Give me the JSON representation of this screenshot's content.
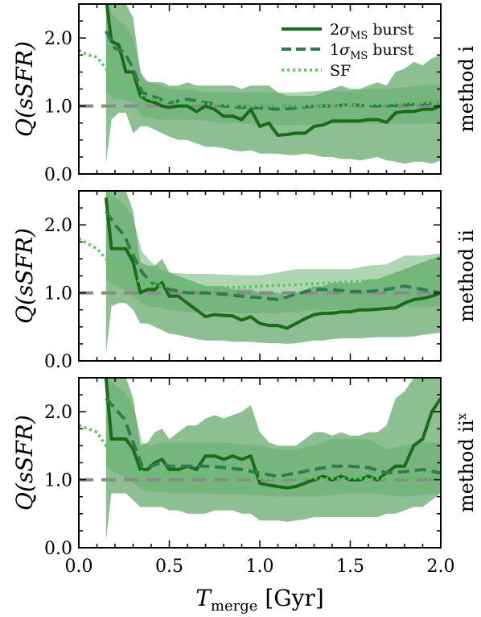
{
  "chart_data": [
    {
      "type": "line",
      "panel_label": "method i",
      "ylabel": "Q(sSFR)",
      "xlim": [
        0.0,
        2.0
      ],
      "ylim": [
        0.0,
        2.5
      ],
      "xticks": [
        "0.0",
        "0.5",
        "1.0",
        "1.5",
        "2.0"
      ],
      "yticks": [
        "0.0",
        "1.0",
        "2.0"
      ],
      "reference_line": 1.0,
      "legend": [
        "2σMS burst",
        "1σMS burst",
        "SF"
      ],
      "series": [
        {
          "name": "2σMS burst",
          "color": "#1a6b1a",
          "style": "solid",
          "x": [
            0.15,
            0.18,
            0.22,
            0.26,
            0.3,
            0.34,
            0.38,
            0.42,
            0.46,
            0.5,
            0.55,
            0.6,
            0.65,
            0.7,
            0.75,
            0.8,
            0.85,
            0.9,
            0.95,
            1.0,
            1.05,
            1.1,
            1.15,
            1.2,
            1.25,
            1.3,
            1.35,
            1.4,
            1.45,
            1.5,
            1.55,
            1.6,
            1.65,
            1.7,
            1.75,
            1.8,
            1.85,
            1.9,
            1.95,
            2.0
          ],
          "y": [
            2.6,
            1.95,
            1.9,
            1.5,
            1.5,
            1.15,
            1.08,
            1.05,
            1.0,
            0.98,
            1.0,
            1.0,
            0.92,
            1.0,
            0.95,
            0.85,
            0.85,
            0.8,
            0.95,
            0.7,
            0.75,
            0.57,
            0.58,
            0.6,
            0.6,
            0.7,
            0.72,
            0.78,
            0.78,
            0.78,
            0.78,
            0.8,
            0.8,
            0.76,
            0.9,
            0.92,
            0.92,
            0.95,
            0.95,
            1.0
          ],
          "lower": [
            0.15,
            0.8,
            0.9,
            0.9,
            0.6,
            0.7,
            0.7,
            0.65,
            0.6,
            0.55,
            0.5,
            0.5,
            0.45,
            0.4,
            0.4,
            0.38,
            0.35,
            0.33,
            0.35,
            0.3,
            0.3,
            0.3,
            0.28,
            0.28,
            0.3,
            0.28,
            0.25,
            0.25,
            0.22,
            0.22,
            0.2,
            0.22,
            0.25,
            0.2,
            0.18,
            0.15,
            0.18,
            0.18,
            0.15,
            0.2
          ],
          "upper": [
            2.6,
            2.6,
            2.6,
            2.5,
            2.3,
            1.5,
            1.35,
            1.35,
            1.35,
            1.3,
            1.3,
            1.35,
            1.3,
            1.3,
            1.3,
            1.3,
            1.3,
            1.25,
            1.3,
            1.3,
            1.3,
            1.2,
            1.15,
            1.15,
            1.15,
            1.15,
            1.2,
            1.25,
            1.3,
            1.25,
            1.25,
            1.3,
            1.35,
            1.3,
            1.5,
            1.55,
            1.65,
            1.6,
            1.7,
            1.75
          ]
        },
        {
          "name": "1σMS burst",
          "color": "#2e7d4f",
          "style": "dashed",
          "x": [
            0.15,
            0.2,
            0.25,
            0.3,
            0.35,
            0.4,
            0.45,
            0.5,
            0.6,
            0.7,
            0.8,
            0.9,
            1.0,
            1.1,
            1.2,
            1.3,
            1.4,
            1.5,
            1.6,
            1.7,
            1.8,
            1.9,
            2.0
          ],
          "y": [
            2.1,
            1.85,
            1.8,
            1.55,
            1.2,
            1.15,
            1.1,
            1.05,
            1.1,
            1.05,
            1.0,
            0.98,
            0.97,
            0.95,
            0.97,
            1.0,
            1.0,
            1.02,
            1.0,
            1.0,
            1.02,
            1.03,
            1.05
          ],
          "lower": [
            1.2,
            1.1,
            1.1,
            1.05,
            0.85,
            0.82,
            0.8,
            0.8,
            0.8,
            0.78,
            0.75,
            0.75,
            0.73,
            0.72,
            0.72,
            0.73,
            0.73,
            0.74,
            0.74,
            0.74,
            0.74,
            0.74,
            0.75
          ],
          "upper": [
            2.5,
            2.3,
            2.2,
            2.0,
            1.4,
            1.35,
            1.3,
            1.25,
            1.25,
            1.2,
            1.2,
            1.2,
            1.2,
            1.2,
            1.2,
            1.22,
            1.22,
            1.22,
            1.25,
            1.25,
            1.28,
            1.3,
            1.32
          ]
        },
        {
          "name": "SF",
          "color": "#55c855",
          "style": "dotted",
          "x": [
            0.0,
            0.05,
            0.1,
            0.15,
            0.2,
            0.25,
            0.3,
            0.35,
            0.4,
            0.5,
            0.6,
            0.7,
            0.8,
            0.9,
            1.0,
            1.2,
            1.4,
            1.6,
            1.8,
            2.0
          ],
          "y": [
            1.82,
            1.75,
            1.72,
            1.55,
            1.38,
            1.33,
            1.22,
            1.15,
            1.1,
            1.08,
            1.05,
            1.03,
            1.02,
            1.0,
            1.0,
            1.0,
            1.0,
            1.02,
            1.05,
            1.05
          ]
        }
      ]
    },
    {
      "type": "line",
      "panel_label": "method ii",
      "ylabel": "Q(sSFR)",
      "xlim": [
        0.0,
        2.0
      ],
      "ylim": [
        0.0,
        2.5
      ],
      "xticks": [
        "0.0",
        "0.5",
        "1.0",
        "1.5",
        "2.0"
      ],
      "yticks": [
        "0.0",
        "1.0",
        "2.0"
      ],
      "reference_line": 1.0,
      "series": [
        {
          "name": "2σMS burst",
          "color": "#1a6b1a",
          "style": "solid",
          "x": [
            0.15,
            0.18,
            0.22,
            0.26,
            0.3,
            0.34,
            0.38,
            0.42,
            0.46,
            0.5,
            0.55,
            0.6,
            0.65,
            0.7,
            0.75,
            0.8,
            0.85,
            0.9,
            0.95,
            1.0,
            1.05,
            1.1,
            1.15,
            1.2,
            1.25,
            1.3,
            1.35,
            1.4,
            1.45,
            1.5,
            1.55,
            1.6,
            1.65,
            1.7,
            1.75,
            1.8,
            1.85,
            1.9,
            1.95,
            2.0
          ],
          "y": [
            2.4,
            1.65,
            1.65,
            1.65,
            1.45,
            1.0,
            1.05,
            1.05,
            1.15,
            0.95,
            0.95,
            0.85,
            0.75,
            0.65,
            0.68,
            0.67,
            0.66,
            0.6,
            0.65,
            0.55,
            0.52,
            0.52,
            0.48,
            0.55,
            0.62,
            0.68,
            0.7,
            0.7,
            0.72,
            0.72,
            0.75,
            0.75,
            0.76,
            0.77,
            0.78,
            0.85,
            0.9,
            0.92,
            0.95,
            1.0
          ],
          "lower": [
            0.1,
            0.8,
            0.85,
            0.85,
            0.75,
            0.55,
            0.55,
            0.5,
            0.45,
            0.4,
            0.38,
            0.35,
            0.32,
            0.3,
            0.3,
            0.3,
            0.28,
            0.28,
            0.28,
            0.27,
            0.26,
            0.26,
            0.25,
            0.26,
            0.28,
            0.3,
            0.3,
            0.32,
            0.33,
            0.33,
            0.33,
            0.34,
            0.35,
            0.35,
            0.35,
            0.35,
            0.36,
            0.38,
            0.4,
            0.42
          ],
          "upper": [
            2.5,
            2.5,
            2.5,
            2.5,
            2.2,
            1.45,
            1.4,
            1.4,
            1.5,
            1.3,
            1.25,
            1.2,
            1.15,
            1.1,
            1.1,
            1.1,
            1.05,
            1.05,
            1.05,
            1.0,
            1.0,
            1.0,
            0.95,
            1.0,
            1.05,
            1.1,
            1.1,
            1.15,
            1.15,
            1.15,
            1.15,
            1.2,
            1.2,
            1.25,
            1.3,
            1.35,
            1.4,
            1.45,
            1.5,
            1.55
          ]
        },
        {
          "name": "1σMS burst",
          "color": "#2e7d4f",
          "style": "dashed",
          "x": [
            0.15,
            0.2,
            0.25,
            0.3,
            0.35,
            0.4,
            0.45,
            0.5,
            0.6,
            0.7,
            0.8,
            0.9,
            1.0,
            1.1,
            1.2,
            1.3,
            1.4,
            1.5,
            1.6,
            1.7,
            1.8,
            1.9,
            2.0
          ],
          "y": [
            2.2,
            2.0,
            1.85,
            1.55,
            1.3,
            1.15,
            1.1,
            1.05,
            1.0,
            1.0,
            0.98,
            0.95,
            0.93,
            0.9,
            0.98,
            1.05,
            1.05,
            1.02,
            1.02,
            1.05,
            1.1,
            1.05,
            1.0
          ],
          "lower": [
            1.2,
            1.1,
            1.05,
            0.95,
            0.85,
            0.8,
            0.78,
            0.75,
            0.72,
            0.72,
            0.72,
            0.7,
            0.7,
            0.7,
            0.72,
            0.75,
            0.75,
            0.75,
            0.76,
            0.78,
            0.8,
            0.8,
            0.8
          ],
          "upper": [
            2.5,
            2.4,
            2.3,
            2.1,
            1.6,
            1.45,
            1.35,
            1.3,
            1.28,
            1.28,
            1.27,
            1.26,
            1.26,
            1.3,
            1.35,
            1.35,
            1.35,
            1.35,
            1.4,
            1.42,
            1.55,
            1.55,
            1.58
          ]
        },
        {
          "name": "SF",
          "color": "#55c855",
          "style": "dotted",
          "x": [
            0.0,
            0.05,
            0.1,
            0.15,
            0.2,
            0.25,
            0.3,
            0.35,
            0.4,
            0.5,
            0.6,
            0.7,
            0.8,
            0.9,
            1.0,
            1.2,
            1.4,
            1.6,
            1.8,
            2.0
          ],
          "y": [
            1.8,
            1.72,
            1.65,
            1.5,
            1.35,
            1.3,
            1.22,
            1.15,
            1.12,
            1.1,
            1.08,
            1.08,
            1.08,
            1.08,
            1.1,
            1.12,
            1.15,
            1.18,
            1.2,
            1.25
          ]
        }
      ]
    },
    {
      "type": "line",
      "panel_label": "method ii",
      "panel_label_superscript": "x",
      "ylabel": "Q(sSFR)",
      "xlabel": "T",
      "xlabel_subscript": "merge",
      "xlabel_unit": "[Gyr]",
      "xlim": [
        0.0,
        2.0
      ],
      "ylim": [
        0.0,
        2.5
      ],
      "xticks": [
        "0.0",
        "0.5",
        "1.0",
        "1.5",
        "2.0"
      ],
      "yticks": [
        "0.0",
        "1.0",
        "2.0"
      ],
      "reference_line": 1.0,
      "series": [
        {
          "name": "2σMS burst",
          "color": "#1a6b1a",
          "style": "solid",
          "x": [
            0.15,
            0.18,
            0.22,
            0.26,
            0.3,
            0.34,
            0.38,
            0.42,
            0.46,
            0.5,
            0.55,
            0.6,
            0.65,
            0.7,
            0.75,
            0.8,
            0.85,
            0.9,
            0.95,
            1.0,
            1.05,
            1.1,
            1.15,
            1.2,
            1.25,
            1.3,
            1.35,
            1.4,
            1.45,
            1.5,
            1.55,
            1.6,
            1.65,
            1.7,
            1.75,
            1.8,
            1.85,
            1.9,
            1.95,
            2.0
          ],
          "y": [
            2.5,
            1.6,
            1.6,
            1.6,
            1.45,
            1.15,
            1.15,
            1.25,
            1.3,
            1.15,
            1.15,
            1.2,
            1.15,
            1.35,
            1.35,
            1.3,
            1.35,
            1.3,
            1.35,
            0.95,
            0.92,
            0.9,
            0.88,
            0.9,
            0.95,
            1.0,
            1.05,
            1.0,
            1.05,
            1.0,
            1.0,
            1.05,
            1.0,
            1.1,
            1.2,
            1.2,
            1.5,
            1.6,
            2.0,
            2.2
          ],
          "lower": [
            0.1,
            0.8,
            0.8,
            0.8,
            0.7,
            0.6,
            0.6,
            0.6,
            0.6,
            0.55,
            0.55,
            0.5,
            0.5,
            0.5,
            0.55,
            0.55,
            0.55,
            0.5,
            0.5,
            0.4,
            0.4,
            0.4,
            0.38,
            0.4,
            0.42,
            0.45,
            0.45,
            0.45,
            0.45,
            0.45,
            0.45,
            0.45,
            0.45,
            0.5,
            0.5,
            0.55,
            0.6,
            0.6,
            0.7,
            0.8
          ],
          "upper": [
            2.5,
            2.5,
            2.5,
            2.5,
            2.2,
            1.5,
            1.55,
            1.7,
            1.75,
            1.6,
            1.7,
            1.8,
            1.8,
            1.9,
            1.95,
            1.9,
            1.95,
            2.0,
            2.1,
            1.7,
            1.55,
            1.5,
            1.5,
            1.5,
            1.6,
            1.7,
            1.7,
            1.65,
            1.7,
            1.65,
            1.65,
            1.7,
            1.7,
            1.8,
            2.2,
            2.3,
            2.5,
            2.5,
            2.5,
            2.5
          ]
        },
        {
          "name": "1σMS burst",
          "color": "#2e7d4f",
          "style": "dashed",
          "x": [
            0.15,
            0.2,
            0.25,
            0.3,
            0.35,
            0.4,
            0.45,
            0.5,
            0.6,
            0.7,
            0.8,
            0.9,
            1.0,
            1.1,
            1.2,
            1.3,
            1.4,
            1.5,
            1.6,
            1.7,
            1.8,
            1.9,
            2.0
          ],
          "y": [
            2.2,
            2.05,
            1.9,
            1.55,
            1.2,
            1.2,
            1.25,
            1.2,
            1.2,
            1.2,
            1.18,
            1.15,
            1.1,
            1.05,
            1.1,
            1.15,
            1.2,
            1.2,
            1.18,
            1.1,
            1.12,
            1.15,
            1.1
          ],
          "lower": [
            1.2,
            1.1,
            1.05,
            0.95,
            0.85,
            0.82,
            0.82,
            0.8,
            0.8,
            0.8,
            0.78,
            0.78,
            0.77,
            0.75,
            0.75,
            0.75,
            0.78,
            0.8,
            0.8,
            0.78,
            0.75,
            0.78,
            0.8
          ],
          "upper": [
            2.5,
            2.4,
            2.3,
            2.1,
            1.55,
            1.5,
            1.55,
            1.55,
            1.55,
            1.55,
            1.55,
            1.52,
            1.5,
            1.45,
            1.45,
            1.5,
            1.6,
            1.6,
            1.6,
            1.45,
            1.5,
            1.55,
            1.55
          ]
        },
        {
          "name": "SF",
          "color": "#55c855",
          "style": "dotted",
          "x": [
            0.0,
            0.05,
            0.1,
            0.15,
            0.2,
            0.25,
            0.3,
            0.35,
            0.4,
            0.5,
            0.6,
            0.7,
            0.8,
            0.9,
            1.0,
            1.2,
            1.4,
            1.6,
            1.8,
            2.0
          ],
          "y": [
            1.8,
            1.75,
            1.7,
            1.5,
            1.35,
            1.3,
            1.2,
            1.12,
            1.1,
            1.08,
            1.05,
            1.05,
            1.05,
            1.03,
            1.02,
            1.02,
            1.02,
            1.02,
            1.02,
            1.02
          ]
        }
      ]
    }
  ]
}
